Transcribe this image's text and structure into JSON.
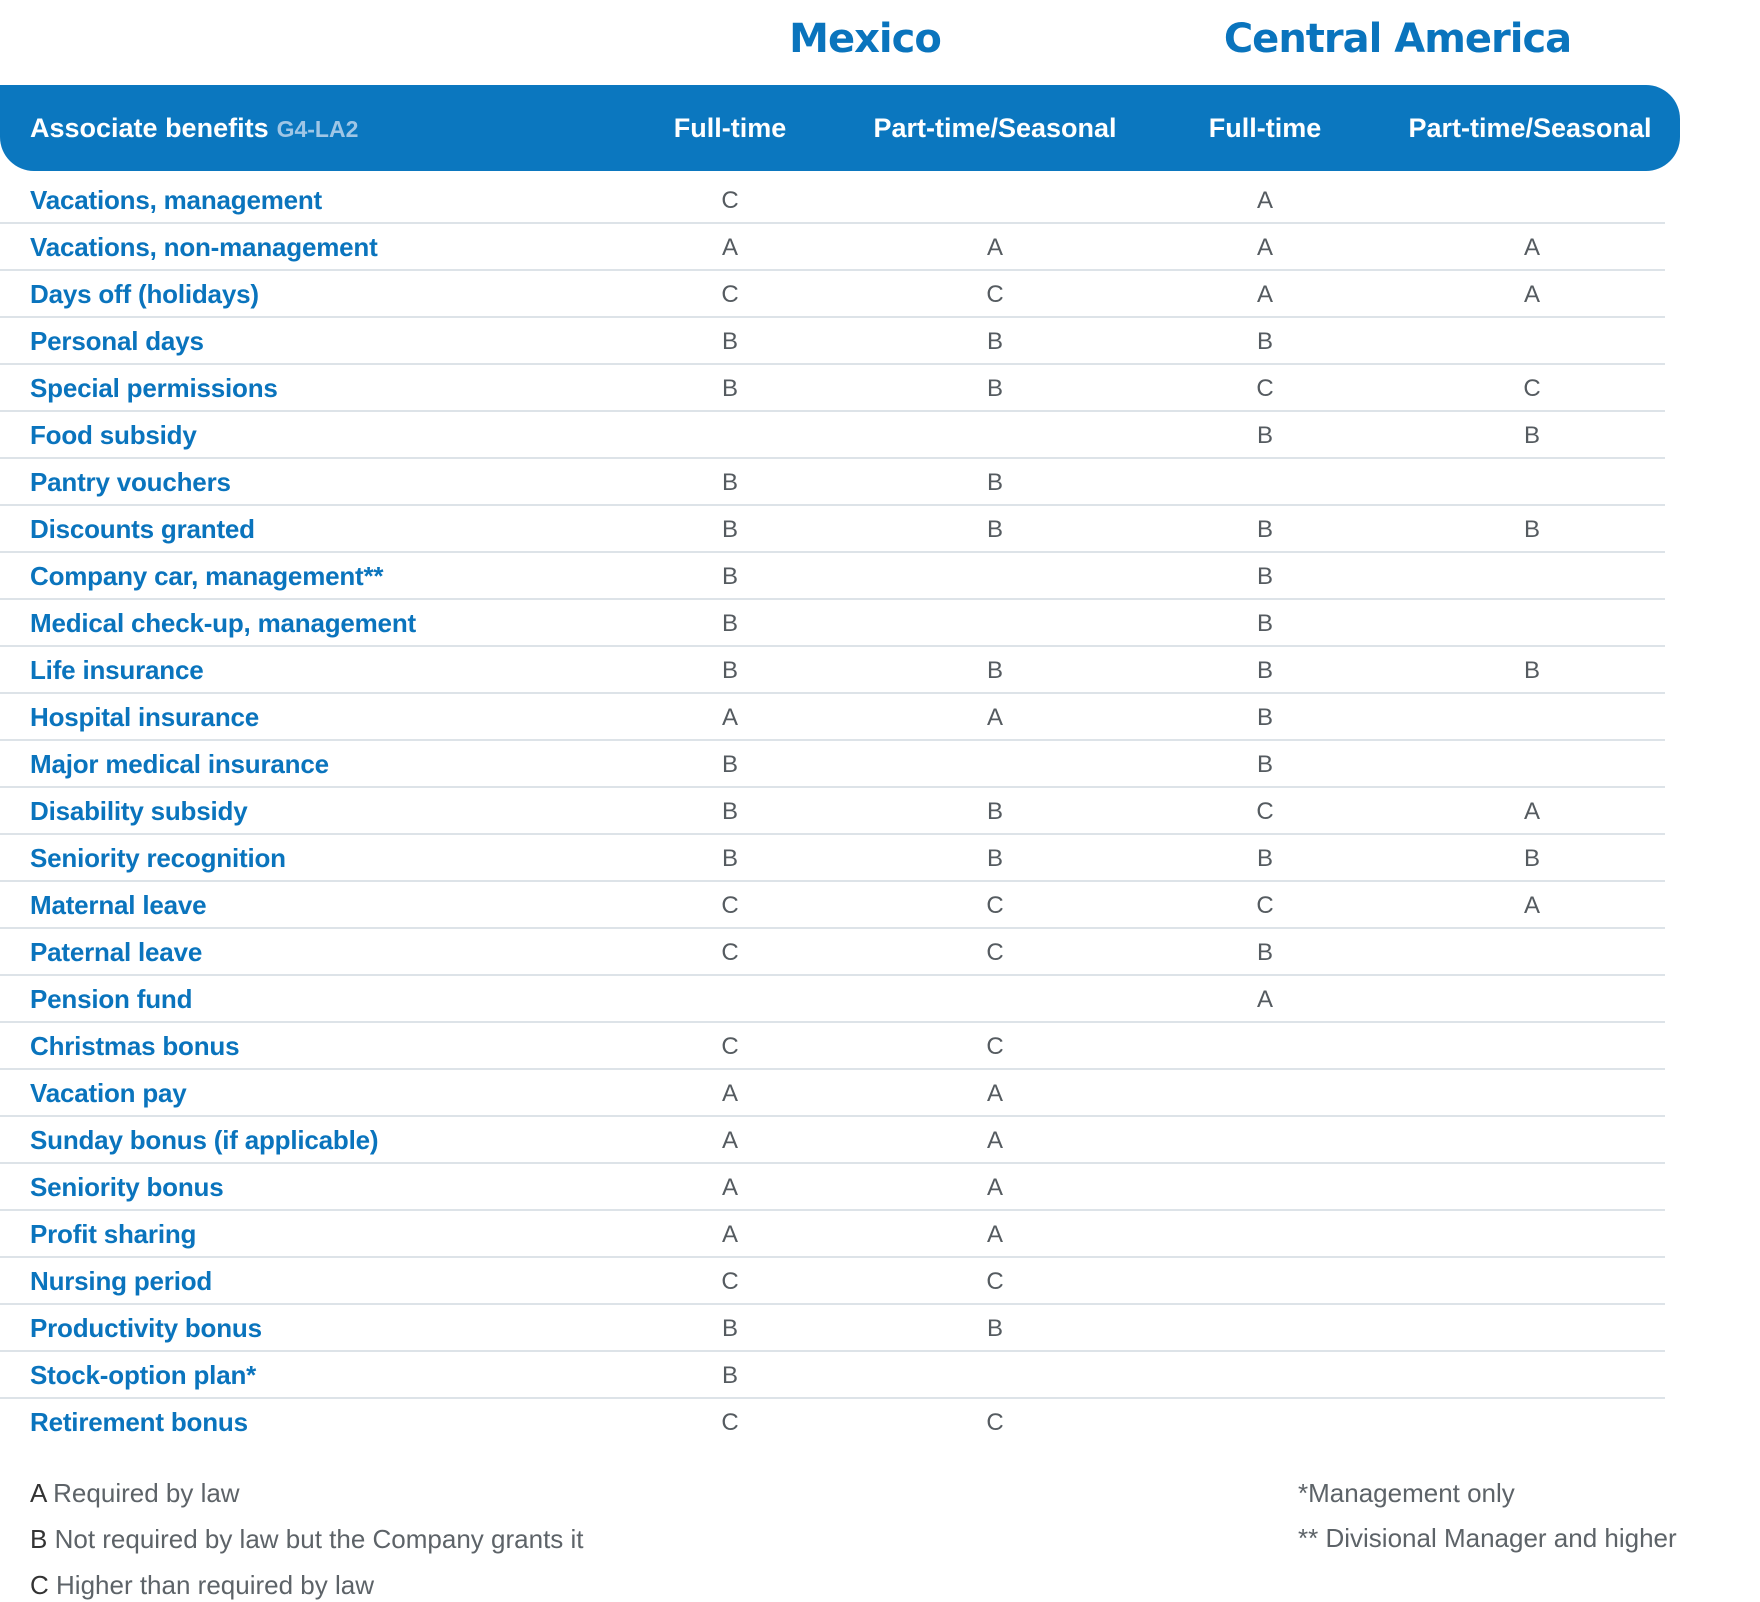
{
  "regions": {
    "mexico": "Mexico",
    "central_america": "Central America"
  },
  "header": {
    "label": "Associate benefits",
    "code": "G4-LA2",
    "columns": [
      "Full-time",
      "Part-time/Seasonal",
      "Full-time",
      "Part-time/Seasonal"
    ]
  },
  "rows": [
    {
      "label": "Vacations, management",
      "values": [
        "C",
        "",
        "A",
        ""
      ]
    },
    {
      "label": "Vacations, non-management",
      "values": [
        "A",
        "A",
        "A",
        "A"
      ]
    },
    {
      "label": "Days off (holidays)",
      "values": [
        "C",
        "C",
        "A",
        "A"
      ]
    },
    {
      "label": "Personal days",
      "values": [
        "B",
        "B",
        "B",
        ""
      ]
    },
    {
      "label": "Special permissions",
      "values": [
        "B",
        "B",
        "C",
        "C"
      ]
    },
    {
      "label": "Food subsidy",
      "values": [
        "",
        "",
        "B",
        "B"
      ]
    },
    {
      "label": "Pantry vouchers",
      "values": [
        "B",
        "B",
        "",
        ""
      ]
    },
    {
      "label": "Discounts granted",
      "values": [
        "B",
        "B",
        "B",
        "B"
      ]
    },
    {
      "label": "Company car, management**",
      "values": [
        "B",
        "",
        "B",
        ""
      ]
    },
    {
      "label": "Medical check-up, management",
      "values": [
        "B",
        "",
        "B",
        ""
      ]
    },
    {
      "label": "Life insurance",
      "values": [
        "B",
        "B",
        "B",
        "B"
      ]
    },
    {
      "label": "Hospital insurance",
      "values": [
        "A",
        "A",
        "B",
        ""
      ]
    },
    {
      "label": "Major medical insurance",
      "values": [
        "B",
        "",
        "B",
        ""
      ]
    },
    {
      "label": "Disability subsidy",
      "values": [
        "B",
        "B",
        "C",
        "A"
      ]
    },
    {
      "label": "Seniority recognition",
      "values": [
        "B",
        "B",
        "B",
        "B"
      ]
    },
    {
      "label": "Maternal leave",
      "values": [
        "C",
        "C",
        "C",
        "A"
      ]
    },
    {
      "label": "Paternal leave",
      "values": [
        "C",
        "C",
        "B",
        ""
      ]
    },
    {
      "label": "Pension fund",
      "values": [
        "",
        "",
        "A",
        ""
      ]
    },
    {
      "label": "Christmas bonus",
      "values": [
        "C",
        "C",
        "",
        ""
      ]
    },
    {
      "label": "Vacation pay",
      "values": [
        "A",
        "A",
        "",
        ""
      ]
    },
    {
      "label": "Sunday bonus (if applicable)",
      "values": [
        "A",
        "A",
        "",
        ""
      ]
    },
    {
      "label": "Seniority bonus",
      "values": [
        "A",
        "A",
        "",
        ""
      ]
    },
    {
      "label": "Profit sharing",
      "values": [
        "A",
        "A",
        "",
        ""
      ]
    },
    {
      "label": "Nursing period",
      "values": [
        "C",
        "C",
        "",
        ""
      ]
    },
    {
      "label": "Productivity bonus",
      "values": [
        "B",
        "B",
        "",
        ""
      ]
    },
    {
      "label": "Stock-option plan*",
      "values": [
        "B",
        "",
        "",
        ""
      ]
    },
    {
      "label": "Retirement bonus",
      "values": [
        "C",
        "C",
        "",
        ""
      ]
    }
  ],
  "legend": [
    {
      "key": "A",
      "text": "Required by law"
    },
    {
      "key": "B",
      "text": "Not required by law but the Company grants it"
    },
    {
      "key": "C",
      "text": "Higher than required by law"
    }
  ],
  "notes": [
    "*Management only",
    "** Divisional Manager and higher"
  ]
}
